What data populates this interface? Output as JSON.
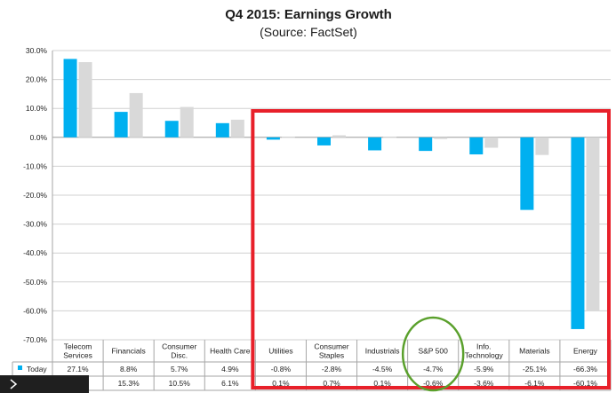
{
  "chart_data": {
    "type": "bar",
    "title": "Q4 2015: Earnings Growth",
    "subtitle": "(Source: FactSet)",
    "categories": [
      [
        "Telecom",
        "Services"
      ],
      [
        "Financials"
      ],
      [
        "Consumer",
        "Disc."
      ],
      [
        "Health Care"
      ],
      [
        "Utilities"
      ],
      [
        "Consumer",
        "Staples"
      ],
      [
        "Industrials"
      ],
      [
        "S&P 500"
      ],
      [
        "Info.",
        "Technology"
      ],
      [
        "Materials"
      ],
      [
        "Energy"
      ]
    ],
    "series": [
      {
        "name": "Today",
        "color": "#00b0f0",
        "values": [
          27.1,
          8.8,
          5.7,
          4.9,
          -0.8,
          -2.8,
          -4.5,
          -4.7,
          -5.9,
          -25.1,
          -66.3
        ],
        "labels": [
          "27.1%",
          "8.8%",
          "5.7%",
          "4.9%",
          "-0.8%",
          "-2.8%",
          "-4.5%",
          "-4.7%",
          "-5.9%",
          "-25.1%",
          "-66.3%"
        ]
      },
      {
        "name": "",
        "color": "#d9d9d9",
        "values": [
          26.0,
          15.3,
          10.5,
          6.1,
          0.1,
          0.7,
          0.1,
          -0.6,
          -3.6,
          -6.1,
          -60.1
        ],
        "labels": [
          "%",
          "15.3%",
          "10.5%",
          "6.1%",
          "0.1%",
          "0.7%",
          "0.1%",
          "-0.6%",
          "-3.6%",
          "-6.1%",
          "-60.1%"
        ]
      }
    ],
    "ylim": [
      -70,
      30
    ],
    "yticks": [
      30,
      20,
      10,
      0,
      -10,
      -20,
      -30,
      -40,
      -50,
      -60,
      -70
    ],
    "ytick_labels": [
      "30.0%",
      "20.0%",
      "10.0%",
      "0.0%",
      "-10.0%",
      "-20.0%",
      "-30.0%",
      "-40.0%",
      "-50.0%",
      "-60.0%",
      "-70.0%"
    ],
    "grid": true,
    "legend": "data-table-left",
    "annotations": [
      {
        "type": "rectangle",
        "color": "#e8202a",
        "spans": [
          "Utilities",
          "Energy"
        ]
      },
      {
        "type": "circle",
        "color": "#5aa02c",
        "around": "S&P 500"
      }
    ]
  }
}
